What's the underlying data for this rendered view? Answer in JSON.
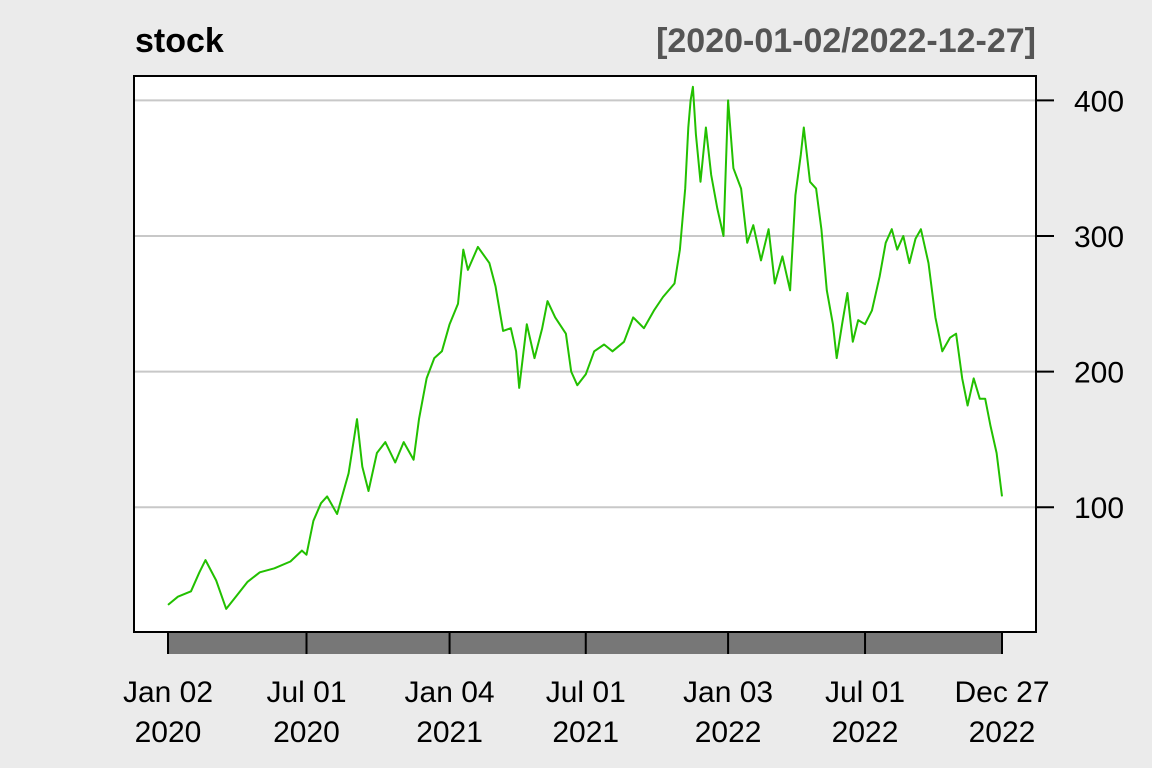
{
  "chart_data": {
    "type": "line",
    "title": "stock",
    "date_range_label": "[2020-01-02/2022-12-27]",
    "ylim": [
      8,
      418
    ],
    "y_ticks": [
      100,
      200,
      300,
      400
    ],
    "y_tick_labels": [
      "100",
      "200",
      "300",
      "400"
    ],
    "x_start": "2020-01-02",
    "x_end": "2022-12-27",
    "x_ticks": [
      {
        "date": "2020-01-02",
        "label1": "Jan 02",
        "label2": "2020"
      },
      {
        "date": "2020-07-01",
        "label1": "Jul 01",
        "label2": "2020"
      },
      {
        "date": "2021-01-04",
        "label1": "Jan 04",
        "label2": "2021"
      },
      {
        "date": "2021-07-01",
        "label1": "Jul 01",
        "label2": "2021"
      },
      {
        "date": "2022-01-03",
        "label1": "Jan 03",
        "label2": "2022"
      },
      {
        "date": "2022-07-01",
        "label1": "Jul 01",
        "label2": "2022"
      },
      {
        "date": "2022-12-27",
        "label1": "Dec 27",
        "label2": "2022"
      }
    ],
    "grid": true,
    "series": [
      {
        "color": "#22c000",
        "points": [
          [
            "2020-01-02",
            28
          ],
          [
            "2020-01-15",
            34
          ],
          [
            "2020-02-01",
            38
          ],
          [
            "2020-02-12",
            52
          ],
          [
            "2020-02-20",
            61
          ],
          [
            "2020-03-05",
            46
          ],
          [
            "2020-03-18",
            25
          ],
          [
            "2020-04-01",
            35
          ],
          [
            "2020-04-15",
            45
          ],
          [
            "2020-05-01",
            52
          ],
          [
            "2020-05-20",
            55
          ],
          [
            "2020-06-10",
            60
          ],
          [
            "2020-06-25",
            68
          ],
          [
            "2020-07-01",
            65
          ],
          [
            "2020-07-10",
            90
          ],
          [
            "2020-07-20",
            103
          ],
          [
            "2020-07-28",
            108
          ],
          [
            "2020-08-10",
            95
          ],
          [
            "2020-08-25",
            125
          ],
          [
            "2020-09-01",
            150
          ],
          [
            "2020-09-05",
            165
          ],
          [
            "2020-09-12",
            130
          ],
          [
            "2020-09-20",
            112
          ],
          [
            "2020-10-01",
            140
          ],
          [
            "2020-10-12",
            148
          ],
          [
            "2020-10-25",
            133
          ],
          [
            "2020-11-05",
            148
          ],
          [
            "2020-11-18",
            135
          ],
          [
            "2020-11-25",
            165
          ],
          [
            "2020-12-05",
            195
          ],
          [
            "2020-12-15",
            210
          ],
          [
            "2020-12-25",
            215
          ],
          [
            "2021-01-04",
            235
          ],
          [
            "2021-01-15",
            250
          ],
          [
            "2021-01-22",
            290
          ],
          [
            "2021-01-28",
            275
          ],
          [
            "2021-02-10",
            292
          ],
          [
            "2021-02-25",
            280
          ],
          [
            "2021-03-05",
            263
          ],
          [
            "2021-03-15",
            230
          ],
          [
            "2021-03-25",
            232
          ],
          [
            "2021-04-01",
            215
          ],
          [
            "2021-04-05",
            188
          ],
          [
            "2021-04-15",
            235
          ],
          [
            "2021-04-25",
            210
          ],
          [
            "2021-05-05",
            232
          ],
          [
            "2021-05-12",
            252
          ],
          [
            "2021-05-22",
            240
          ],
          [
            "2021-06-05",
            228
          ],
          [
            "2021-06-12",
            200
          ],
          [
            "2021-06-20",
            190
          ],
          [
            "2021-07-01",
            198
          ],
          [
            "2021-07-12",
            215
          ],
          [
            "2021-07-25",
            220
          ],
          [
            "2021-08-05",
            215
          ],
          [
            "2021-08-20",
            222
          ],
          [
            "2021-09-01",
            240
          ],
          [
            "2021-09-15",
            232
          ],
          [
            "2021-09-28",
            245
          ],
          [
            "2021-10-10",
            255
          ],
          [
            "2021-10-25",
            265
          ],
          [
            "2021-11-01",
            290
          ],
          [
            "2021-11-08",
            335
          ],
          [
            "2021-11-12",
            380
          ],
          [
            "2021-11-15",
            400
          ],
          [
            "2021-11-18",
            410
          ],
          [
            "2021-11-22",
            375
          ],
          [
            "2021-11-28",
            340
          ],
          [
            "2021-12-05",
            380
          ],
          [
            "2021-12-12",
            345
          ],
          [
            "2021-12-20",
            320
          ],
          [
            "2021-12-28",
            300
          ],
          [
            "2022-01-03",
            400
          ],
          [
            "2022-01-10",
            350
          ],
          [
            "2022-01-20",
            335
          ],
          [
            "2022-01-28",
            295
          ],
          [
            "2022-02-05",
            308
          ],
          [
            "2022-02-15",
            282
          ],
          [
            "2022-02-25",
            305
          ],
          [
            "2022-03-05",
            265
          ],
          [
            "2022-03-15",
            285
          ],
          [
            "2022-03-25",
            260
          ],
          [
            "2022-04-01",
            330
          ],
          [
            "2022-04-08",
            360
          ],
          [
            "2022-04-12",
            380
          ],
          [
            "2022-04-20",
            340
          ],
          [
            "2022-04-28",
            335
          ],
          [
            "2022-05-05",
            305
          ],
          [
            "2022-05-12",
            260
          ],
          [
            "2022-05-20",
            235
          ],
          [
            "2022-05-25",
            210
          ],
          [
            "2022-06-01",
            235
          ],
          [
            "2022-06-08",
            258
          ],
          [
            "2022-06-15",
            222
          ],
          [
            "2022-06-22",
            238
          ],
          [
            "2022-07-01",
            235
          ],
          [
            "2022-07-10",
            245
          ],
          [
            "2022-07-20",
            270
          ],
          [
            "2022-07-28",
            295
          ],
          [
            "2022-08-05",
            305
          ],
          [
            "2022-08-12",
            290
          ],
          [
            "2022-08-20",
            300
          ],
          [
            "2022-08-28",
            280
          ],
          [
            "2022-09-05",
            298
          ],
          [
            "2022-09-12",
            305
          ],
          [
            "2022-09-22",
            280
          ],
          [
            "2022-10-01",
            240
          ],
          [
            "2022-10-10",
            215
          ],
          [
            "2022-10-20",
            225
          ],
          [
            "2022-10-28",
            228
          ],
          [
            "2022-11-05",
            195
          ],
          [
            "2022-11-12",
            175
          ],
          [
            "2022-11-20",
            195
          ],
          [
            "2022-11-28",
            180
          ],
          [
            "2022-12-05",
            180
          ],
          [
            "2022-12-12",
            160
          ],
          [
            "2022-12-20",
            140
          ],
          [
            "2022-12-27",
            108
          ]
        ]
      }
    ]
  }
}
